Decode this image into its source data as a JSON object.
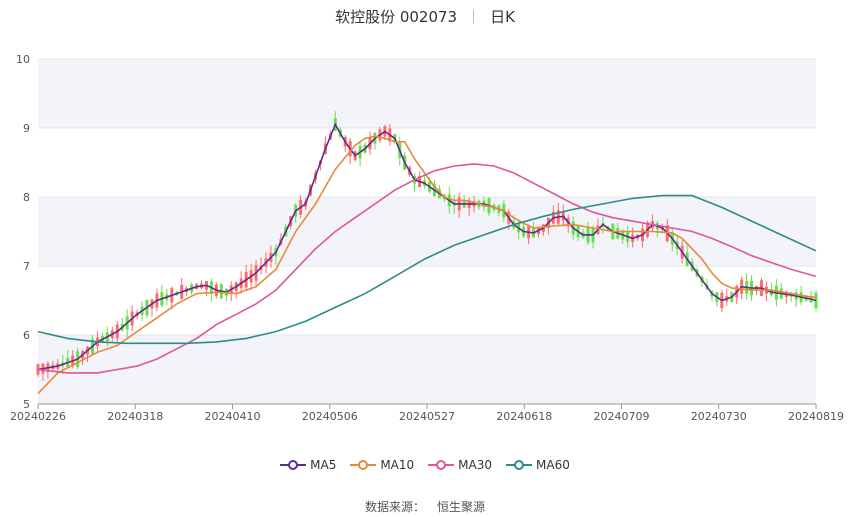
{
  "header": {
    "stock_name_code": "软控股份 002073",
    "period": "日K"
  },
  "source": {
    "label": "数据来源：",
    "value": "恒生聚源"
  },
  "colors": {
    "up": "#ff6b6b",
    "down": "#66e04a",
    "ma5": "#5b2d8e",
    "ma10": "#e8893a",
    "ma30": "#e0559b",
    "ma60": "#2e8b8b",
    "band": "#f3f4fa",
    "grid": "#e6e6e6"
  },
  "chart_data": {
    "type": "candlestick",
    "ylim": [
      5,
      10
    ],
    "yticks": [
      "5",
      "6",
      "7",
      "8",
      "9",
      "10"
    ],
    "xticks": [
      "20240226",
      "20240318",
      "20240410",
      "20240506",
      "20240527",
      "20240618",
      "20240709",
      "20240730",
      "20240819"
    ],
    "legend_position": "bottom",
    "series": [
      {
        "name": "MA5",
        "color": "#5b2d8e",
        "points": [
          [
            0,
            5.5
          ],
          [
            4,
            5.55
          ],
          [
            8,
            5.65
          ],
          [
            12,
            5.9
          ],
          [
            16,
            6.05
          ],
          [
            20,
            6.3
          ],
          [
            24,
            6.5
          ],
          [
            28,
            6.6
          ],
          [
            32,
            6.7
          ],
          [
            34,
            6.72
          ],
          [
            36,
            6.65
          ],
          [
            38,
            6.62
          ],
          [
            40,
            6.7
          ],
          [
            44,
            6.9
          ],
          [
            48,
            7.2
          ],
          [
            50,
            7.5
          ],
          [
            52,
            7.8
          ],
          [
            54,
            7.9
          ],
          [
            56,
            8.3
          ],
          [
            58,
            8.7
          ],
          [
            60,
            9.05
          ],
          [
            62,
            8.8
          ],
          [
            64,
            8.6
          ],
          [
            66,
            8.7
          ],
          [
            68,
            8.85
          ],
          [
            70,
            8.95
          ],
          [
            72,
            8.85
          ],
          [
            74,
            8.5
          ],
          [
            76,
            8.25
          ],
          [
            78,
            8.2
          ],
          [
            80,
            8.1
          ],
          [
            82,
            8.0
          ],
          [
            84,
            7.9
          ],
          [
            86,
            7.9
          ],
          [
            88,
            7.9
          ],
          [
            90,
            7.9
          ],
          [
            92,
            7.85
          ],
          [
            94,
            7.8
          ],
          [
            96,
            7.6
          ],
          [
            98,
            7.5
          ],
          [
            100,
            7.48
          ],
          [
            102,
            7.55
          ],
          [
            104,
            7.7
          ],
          [
            106,
            7.72
          ],
          [
            108,
            7.55
          ],
          [
            110,
            7.45
          ],
          [
            112,
            7.45
          ],
          [
            114,
            7.6
          ],
          [
            116,
            7.5
          ],
          [
            118,
            7.45
          ],
          [
            120,
            7.4
          ],
          [
            122,
            7.45
          ],
          [
            124,
            7.6
          ],
          [
            126,
            7.55
          ],
          [
            128,
            7.4
          ],
          [
            130,
            7.2
          ],
          [
            132,
            7.0
          ],
          [
            134,
            6.8
          ],
          [
            136,
            6.6
          ],
          [
            138,
            6.5
          ],
          [
            140,
            6.55
          ],
          [
            142,
            6.7
          ],
          [
            144,
            6.68
          ],
          [
            146,
            6.68
          ],
          [
            148,
            6.62
          ],
          [
            150,
            6.6
          ],
          [
            152,
            6.58
          ],
          [
            154,
            6.55
          ],
          [
            156,
            6.52
          ],
          [
            157,
            6.5
          ]
        ]
      },
      {
        "name": "MA10",
        "color": "#e8893a",
        "points": [
          [
            0,
            5.15
          ],
          [
            4,
            5.45
          ],
          [
            8,
            5.6
          ],
          [
            12,
            5.75
          ],
          [
            16,
            5.85
          ],
          [
            20,
            6.05
          ],
          [
            24,
            6.25
          ],
          [
            28,
            6.45
          ],
          [
            32,
            6.6
          ],
          [
            36,
            6.62
          ],
          [
            40,
            6.6
          ],
          [
            44,
            6.7
          ],
          [
            48,
            6.95
          ],
          [
            52,
            7.5
          ],
          [
            56,
            7.9
          ],
          [
            60,
            8.4
          ],
          [
            64,
            8.75
          ],
          [
            66,
            8.85
          ],
          [
            68,
            8.88
          ],
          [
            70,
            8.85
          ],
          [
            72,
            8.8
          ],
          [
            74,
            8.8
          ],
          [
            76,
            8.55
          ],
          [
            78,
            8.35
          ],
          [
            80,
            8.15
          ],
          [
            82,
            8.0
          ],
          [
            84,
            7.95
          ],
          [
            86,
            7.95
          ],
          [
            88,
            7.92
          ],
          [
            90,
            7.88
          ],
          [
            92,
            7.85
          ],
          [
            94,
            7.8
          ],
          [
            96,
            7.7
          ],
          [
            98,
            7.62
          ],
          [
            100,
            7.55
          ],
          [
            104,
            7.58
          ],
          [
            108,
            7.6
          ],
          [
            112,
            7.55
          ],
          [
            116,
            7.5
          ],
          [
            120,
            7.5
          ],
          [
            124,
            7.5
          ],
          [
            128,
            7.48
          ],
          [
            130,
            7.4
          ],
          [
            132,
            7.25
          ],
          [
            134,
            7.1
          ],
          [
            136,
            6.9
          ],
          [
            138,
            6.75
          ],
          [
            140,
            6.68
          ],
          [
            144,
            6.65
          ],
          [
            148,
            6.65
          ],
          [
            152,
            6.6
          ],
          [
            156,
            6.55
          ],
          [
            157,
            6.55
          ]
        ]
      },
      {
        "name": "MA30",
        "color": "#e0559b",
        "points": [
          [
            0,
            5.5
          ],
          [
            6,
            5.45
          ],
          [
            12,
            5.45
          ],
          [
            16,
            5.5
          ],
          [
            20,
            5.55
          ],
          [
            24,
            5.65
          ],
          [
            28,
            5.8
          ],
          [
            32,
            5.95
          ],
          [
            36,
            6.15
          ],
          [
            40,
            6.3
          ],
          [
            44,
            6.45
          ],
          [
            48,
            6.65
          ],
          [
            52,
            6.95
          ],
          [
            56,
            7.25
          ],
          [
            60,
            7.5
          ],
          [
            64,
            7.7
          ],
          [
            68,
            7.9
          ],
          [
            72,
            8.1
          ],
          [
            76,
            8.25
          ],
          [
            80,
            8.38
          ],
          [
            84,
            8.45
          ],
          [
            88,
            8.48
          ],
          [
            92,
            8.45
          ],
          [
            96,
            8.35
          ],
          [
            100,
            8.2
          ],
          [
            104,
            8.05
          ],
          [
            108,
            7.9
          ],
          [
            112,
            7.78
          ],
          [
            116,
            7.7
          ],
          [
            120,
            7.65
          ],
          [
            124,
            7.6
          ],
          [
            128,
            7.55
          ],
          [
            132,
            7.5
          ],
          [
            136,
            7.4
          ],
          [
            140,
            7.28
          ],
          [
            144,
            7.15
          ],
          [
            148,
            7.05
          ],
          [
            152,
            6.95
          ],
          [
            157,
            6.85
          ]
        ]
      },
      {
        "name": "MA60",
        "color": "#2e8b8b",
        "points": [
          [
            0,
            6.05
          ],
          [
            6,
            5.95
          ],
          [
            12,
            5.9
          ],
          [
            18,
            5.88
          ],
          [
            24,
            5.88
          ],
          [
            30,
            5.88
          ],
          [
            36,
            5.9
          ],
          [
            42,
            5.95
          ],
          [
            48,
            6.05
          ],
          [
            54,
            6.2
          ],
          [
            60,
            6.4
          ],
          [
            66,
            6.6
          ],
          [
            72,
            6.85
          ],
          [
            78,
            7.1
          ],
          [
            84,
            7.3
          ],
          [
            90,
            7.45
          ],
          [
            96,
            7.6
          ],
          [
            102,
            7.72
          ],
          [
            108,
            7.82
          ],
          [
            114,
            7.9
          ],
          [
            120,
            7.98
          ],
          [
            126,
            8.02
          ],
          [
            132,
            8.02
          ],
          [
            138,
            7.85
          ],
          [
            144,
            7.65
          ],
          [
            150,
            7.45
          ],
          [
            157,
            7.22
          ]
        ]
      }
    ]
  },
  "candles_chart_data_note_free": true
}
